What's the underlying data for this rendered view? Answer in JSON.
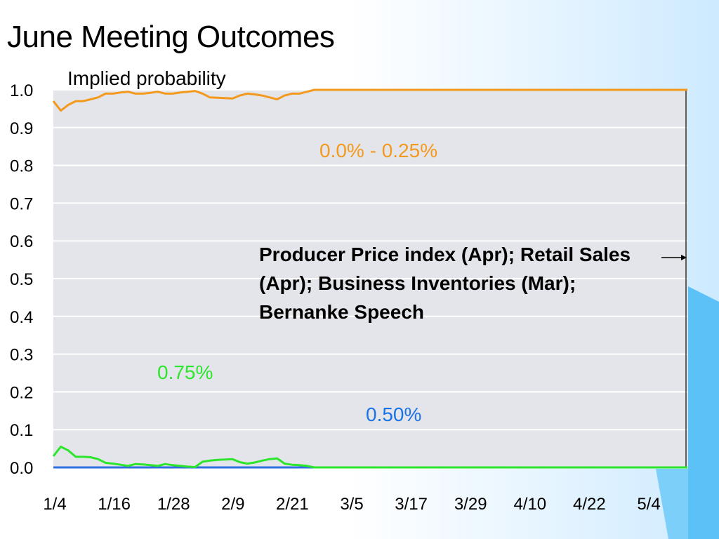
{
  "slide": {
    "title": "June Meeting Outcomes",
    "subtitle": "Implied probability"
  },
  "colors": {
    "plot_bg": "#e4e5ea",
    "grid": "#ffffff",
    "orange": "#f39a1e",
    "green": "#2ee52e",
    "blue": "#2f6fe0",
    "label_blue": "#1a74e8"
  },
  "chart_data": {
    "type": "line",
    "title": "June Meeting Outcomes",
    "ylabel": "Implied probability",
    "ylim": [
      0,
      1
    ],
    "yticks": [
      "0.0",
      "0.1",
      "0.2",
      "0.3",
      "0.4",
      "0.5",
      "0.6",
      "0.7",
      "0.8",
      "0.9",
      "1.0"
    ],
    "xticks": [
      "1/4",
      "1/16",
      "1/28",
      "2/9",
      "2/21",
      "3/5",
      "3/17",
      "3/29",
      "4/10",
      "4/22",
      "5/4"
    ],
    "grid": true,
    "series": [
      {
        "name": "0.0% - 0.25%",
        "color": "#f39a1e",
        "points": [
          [
            0,
            0.97
          ],
          [
            1,
            0.945
          ],
          [
            2,
            0.96
          ],
          [
            3,
            0.97
          ],
          [
            4,
            0.97
          ],
          [
            5,
            0.975
          ],
          [
            6,
            0.98
          ],
          [
            7,
            0.99
          ],
          [
            8,
            0.99
          ],
          [
            9,
            0.993
          ],
          [
            10,
            0.995
          ],
          [
            11,
            0.99
          ],
          [
            12,
            0.99
          ],
          [
            13,
            0.992
          ],
          [
            14,
            0.995
          ],
          [
            15,
            0.99
          ],
          [
            16,
            0.99
          ],
          [
            17,
            0.993
          ],
          [
            18,
            0.995
          ],
          [
            19,
            0.997
          ],
          [
            20,
            0.99
          ],
          [
            21,
            0.98
          ],
          [
            22,
            0.979
          ],
          [
            23,
            0.978
          ],
          [
            24,
            0.977
          ],
          [
            25,
            0.985
          ],
          [
            26,
            0.99
          ],
          [
            27,
            0.988
          ],
          [
            28,
            0.985
          ],
          [
            29,
            0.98
          ],
          [
            30,
            0.975
          ],
          [
            31,
            0.985
          ],
          [
            32,
            0.99
          ],
          [
            33,
            0.99
          ],
          [
            34,
            0.995
          ],
          [
            35,
            1.0
          ],
          [
            85,
            1.0
          ]
        ]
      },
      {
        "name": "0.75%",
        "color": "#2ee52e",
        "points": [
          [
            0,
            0.03
          ],
          [
            1,
            0.055
          ],
          [
            2,
            0.045
          ],
          [
            3,
            0.028
          ],
          [
            4,
            0.028
          ],
          [
            5,
            0.027
          ],
          [
            6,
            0.022
          ],
          [
            7,
            0.012
          ],
          [
            8,
            0.01
          ],
          [
            9,
            0.007
          ],
          [
            10,
            0.004
          ],
          [
            11,
            0.009
          ],
          [
            12,
            0.008
          ],
          [
            13,
            0.006
          ],
          [
            14,
            0.004
          ],
          [
            15,
            0.009
          ],
          [
            16,
            0.006
          ],
          [
            17,
            0.004
          ],
          [
            18,
            0.002
          ],
          [
            19,
            0.001
          ],
          [
            20,
            0.015
          ],
          [
            21,
            0.018
          ],
          [
            22,
            0.02
          ],
          [
            23,
            0.021
          ],
          [
            24,
            0.022
          ],
          [
            25,
            0.014
          ],
          [
            26,
            0.01
          ],
          [
            27,
            0.013
          ],
          [
            28,
            0.018
          ],
          [
            29,
            0.022
          ],
          [
            30,
            0.024
          ],
          [
            31,
            0.01
          ],
          [
            32,
            0.007
          ],
          [
            33,
            0.006
          ],
          [
            34,
            0.004
          ],
          [
            35,
            0.0
          ],
          [
            85,
            0.0
          ]
        ]
      },
      {
        "name": "0.50%",
        "color": "#2f6fe0",
        "points": [
          [
            0,
            0.0
          ],
          [
            85,
            0.0
          ]
        ]
      }
    ],
    "series_labels": [
      {
        "text": "0.0% - 0.25%",
        "color": "#f39a1e"
      },
      {
        "text": "0.75%",
        "color": "#2ee52e"
      },
      {
        "text": "0.50%",
        "color": "#1a74e8"
      }
    ],
    "annotation": "Producer Price index (Apr); Retail Sales (Apr); Business Inventories (Mar); Bernanke Speech",
    "marker_line_x": 85
  }
}
